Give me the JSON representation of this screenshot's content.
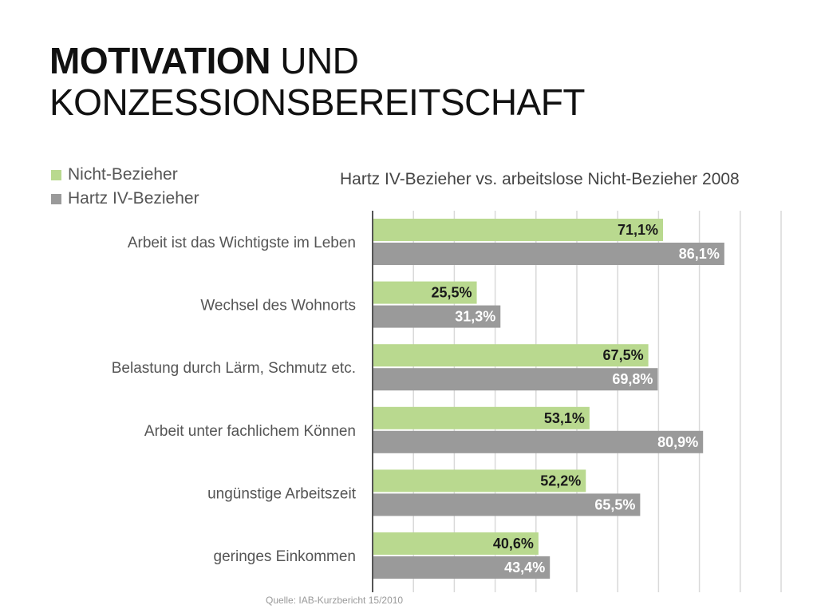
{
  "slide": {
    "title_bold": "MOTIVATION",
    "title_rest": " UND",
    "title_line2": "KONZESSIONSBEREITSCHAFT",
    "source": "Quelle: IAB-Kurzbericht 15/2010"
  },
  "colors": {
    "nicht_bezieher": "#b9d98f",
    "hartz_bezieher": "#9a9a9a",
    "gridline": "#d9d9d9",
    "axis": "#555555",
    "label_dark": "#1a1a1a",
    "label_light": "#ffffff"
  },
  "chart_data": {
    "type": "bar",
    "orientation": "horizontal",
    "title": "Hartz IV-Bezieher vs. arbeitslose Nicht-Bezieher 2008",
    "categories": [
      "Arbeit ist das Wichtigste im Leben",
      "Wechsel des Wohnorts",
      "Belastung durch Lärm, Schmutz etc.",
      "Arbeit unter fachlichem Können",
      "ungünstige Arbeitszeit",
      "geringes Einkommen"
    ],
    "series": [
      {
        "name": "Nicht-Bezieher",
        "values": [
          71.1,
          25.5,
          67.5,
          53.1,
          52.2,
          40.6
        ],
        "labels": [
          "71,1%",
          "25,5%",
          "67,5%",
          "53,1%",
          "52,2%",
          "40,6%"
        ]
      },
      {
        "name": "Hartz IV-Bezieher",
        "values": [
          86.1,
          31.3,
          69.8,
          80.9,
          65.5,
          43.4
        ],
        "labels": [
          "86,1%",
          "31,3%",
          "69,8%",
          "80,9%",
          "65,5%",
          "43,4%"
        ]
      }
    ],
    "xlim": [
      0,
      100
    ],
    "grid": true,
    "legend_position": "top-left"
  }
}
